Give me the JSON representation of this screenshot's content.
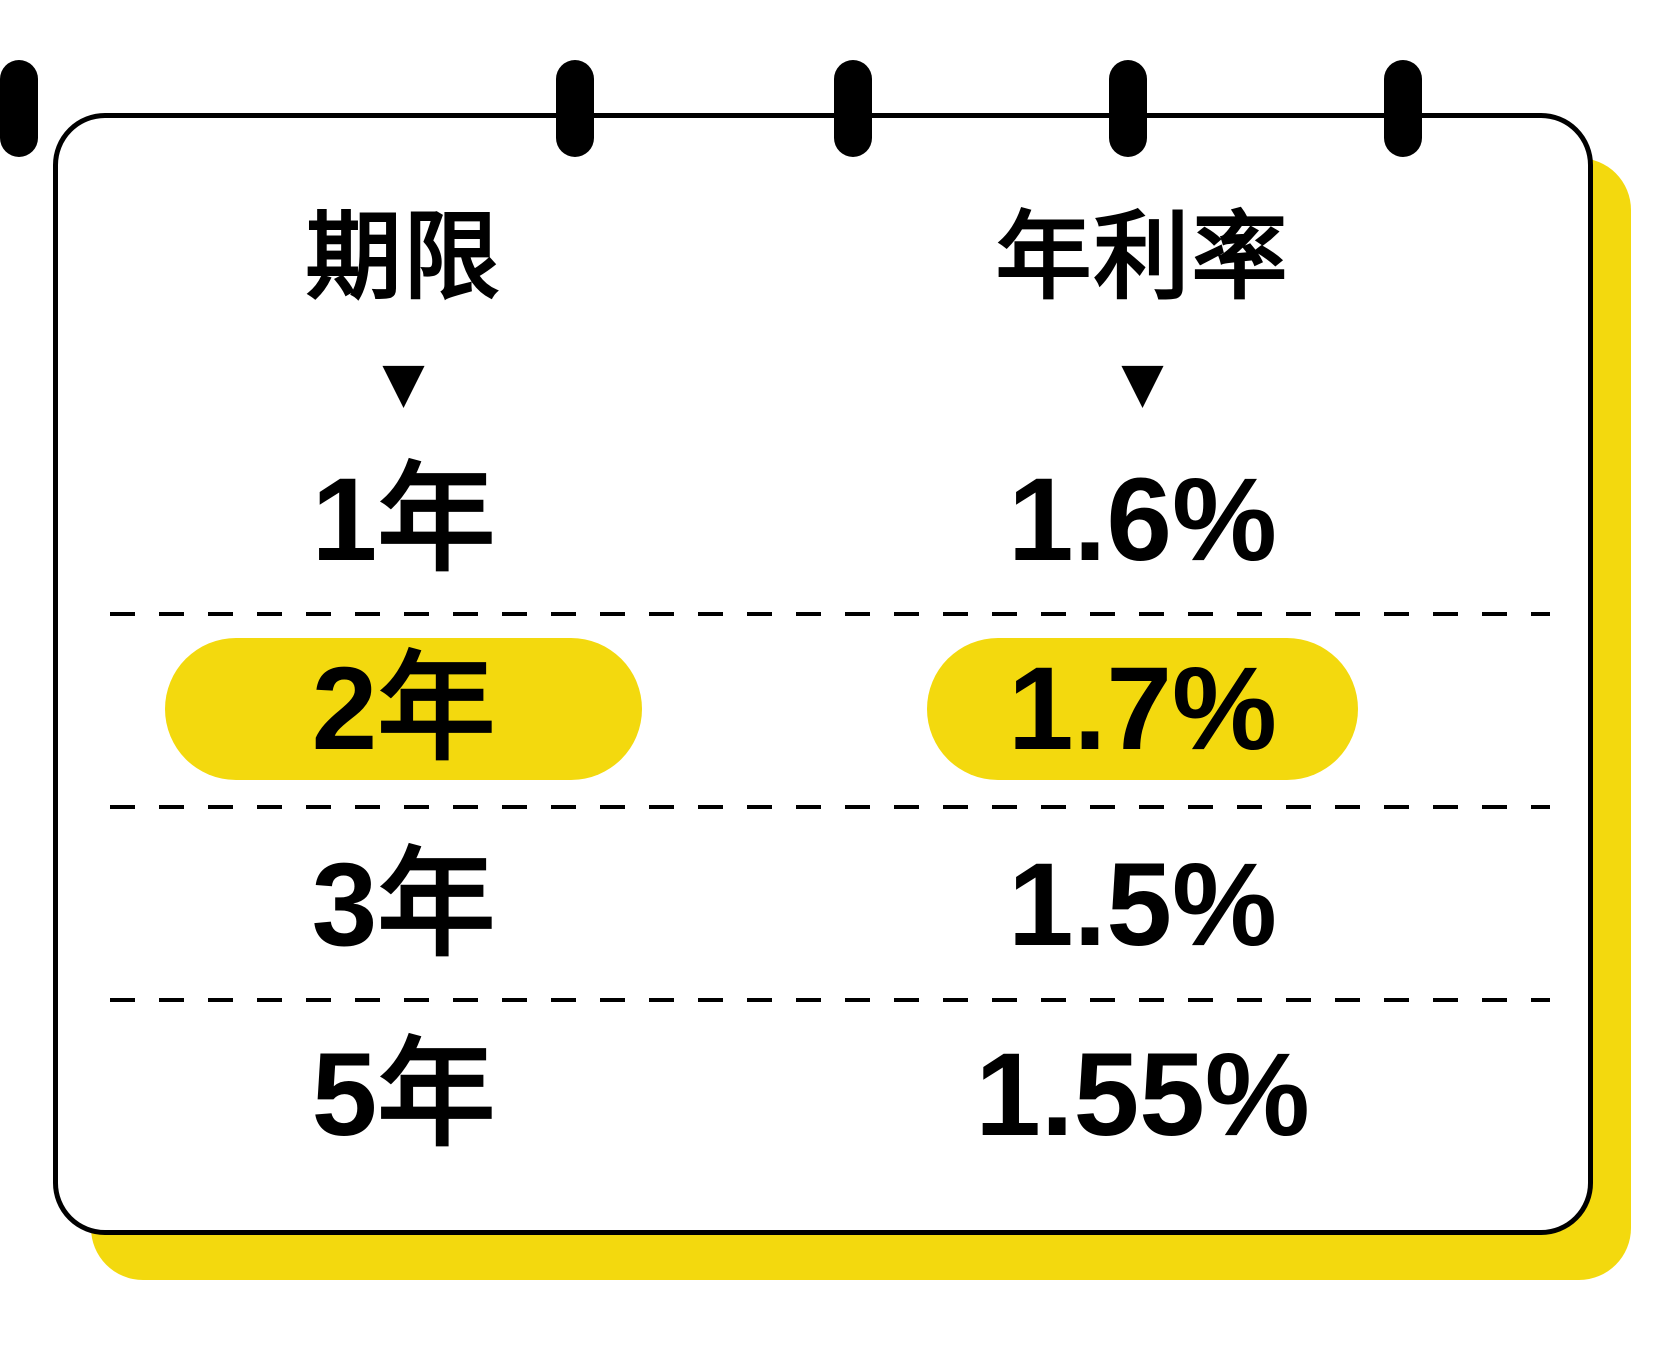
{
  "calendar_card": {
    "columns": {
      "left_header": "期限",
      "right_header": "年利率"
    },
    "pointer_icon": "▼",
    "rows": [
      {
        "term": "1年",
        "rate": "1.6%",
        "highlighted": false
      },
      {
        "term": "2年",
        "rate": "1.7%",
        "highlighted": true
      },
      {
        "term": "3年",
        "rate": "1.5%",
        "highlighted": false
      },
      {
        "term": "5年",
        "rate": "1.55%",
        "highlighted": false
      }
    ],
    "decorations": {
      "binder_ring_count": 5,
      "dashed_separator_count": 3
    },
    "colors": {
      "highlight_yellow": "#F3D90E",
      "shadow_yellow": "#F3D90E",
      "ink_black": "#000000",
      "card_background": "#FFFFFF"
    }
  }
}
